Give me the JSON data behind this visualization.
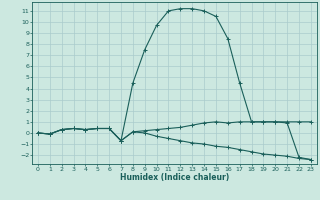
{
  "title": "",
  "xlabel": "Humidex (Indice chaleur)",
  "background_color": "#cce8e0",
  "grid_color": "#aacccc",
  "line_color": "#1a5f5a",
  "xlim": [
    -0.5,
    23.5
  ],
  "ylim": [
    -2.8,
    11.8
  ],
  "xticks": [
    0,
    1,
    2,
    3,
    4,
    5,
    6,
    7,
    8,
    9,
    10,
    11,
    12,
    13,
    14,
    15,
    16,
    17,
    18,
    19,
    20,
    21,
    22,
    23
  ],
  "yticks": [
    -2,
    -1,
    0,
    1,
    2,
    3,
    4,
    5,
    6,
    7,
    8,
    9,
    10,
    11
  ],
  "curve1_x": [
    0,
    1,
    2,
    3,
    4,
    5,
    6,
    7,
    8,
    9,
    10,
    11,
    12,
    13,
    14,
    15,
    16,
    17,
    18,
    19,
    20,
    21,
    22,
    23
  ],
  "curve1_y": [
    0.0,
    -0.1,
    0.3,
    0.4,
    0.3,
    0.4,
    0.4,
    -0.7,
    0.1,
    0.2,
    0.3,
    0.4,
    0.5,
    0.7,
    0.9,
    1.0,
    0.9,
    1.0,
    1.0,
    1.0,
    1.0,
    1.0,
    1.0,
    1.0
  ],
  "curve2_x": [
    0,
    1,
    2,
    3,
    4,
    5,
    6,
    7,
    8,
    9,
    10,
    11,
    12,
    13,
    14,
    15,
    16,
    17,
    18,
    19,
    20,
    21,
    22,
    23
  ],
  "curve2_y": [
    0.0,
    -0.1,
    0.3,
    0.4,
    0.3,
    0.4,
    0.4,
    -0.7,
    4.5,
    7.5,
    9.7,
    11.0,
    11.2,
    11.2,
    11.0,
    10.5,
    8.5,
    4.5,
    1.0,
    1.0,
    1.0,
    0.9,
    -2.2,
    -2.4
  ],
  "curve3_x": [
    0,
    1,
    2,
    3,
    4,
    5,
    6,
    7,
    8,
    9,
    10,
    11,
    12,
    13,
    14,
    15,
    16,
    17,
    18,
    19,
    20,
    21,
    22,
    23
  ],
  "curve3_y": [
    0.0,
    -0.1,
    0.3,
    0.4,
    0.3,
    0.4,
    0.4,
    -0.7,
    0.1,
    0.0,
    -0.3,
    -0.5,
    -0.7,
    -0.9,
    -1.0,
    -1.2,
    -1.3,
    -1.5,
    -1.7,
    -1.9,
    -2.0,
    -2.1,
    -2.3,
    -2.4
  ]
}
